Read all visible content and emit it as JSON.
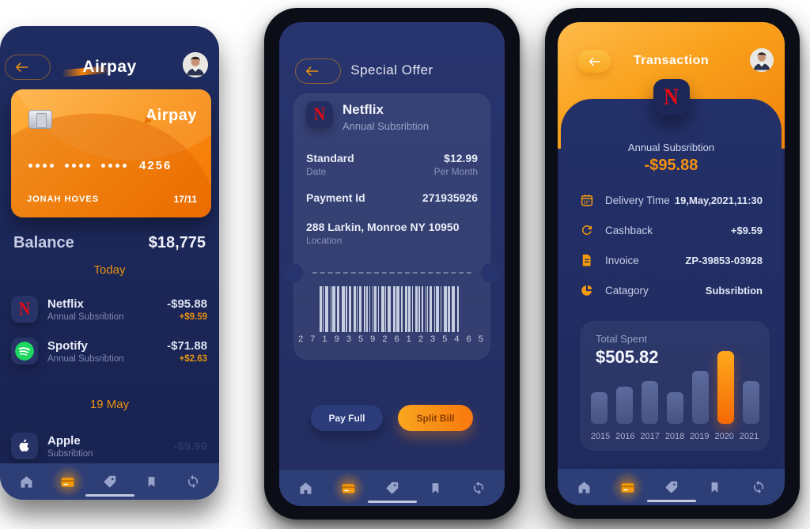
{
  "colors": {
    "accent_orange": "#E8920F",
    "card_gradient": [
      "#FFB242",
      "#F57301"
    ],
    "screen_navy": "#1D2A5C",
    "nav_bar": "#2E3E76",
    "netflix_red": "#E50914",
    "spotify_green": "#1ED760",
    "bar_blue": "#4E5B8C",
    "bar_highlight": "#F98A0D"
  },
  "screen1": {
    "title": "Airpay",
    "card": {
      "brand": "Airpay",
      "digits": "4256",
      "holder": "JONAH HOVES",
      "expiry": "17/11"
    },
    "balance_label": "Balance",
    "balance_value": "$18,775",
    "section1_date": "Today",
    "tx": [
      {
        "name": "Netflix",
        "sub": "Annual Subsribtion",
        "amount": "-$95.88",
        "cashback": "+$9.59"
      },
      {
        "name": "Spotify",
        "sub": "Annual Subsribtion",
        "amount": "-$71.88",
        "cashback": "+$2.63"
      },
      {
        "name": "Apple",
        "sub": "Subsribtion",
        "amount": "-$9.99",
        "cashback": ""
      }
    ],
    "section2_date": "19 May"
  },
  "screen2": {
    "title": "Special Offer",
    "merchant": "Netflix",
    "merchant_sub": "Annual Subsribtion",
    "plan": "Standard",
    "plan_sub": "Date",
    "price": "$12.99",
    "price_sub": "Per Month",
    "payment_id_label": "Payment Id",
    "payment_id": "271935926",
    "address": "288 Larkin, Monroe NY 10950",
    "address_sub": "Location",
    "barcode_text": "2 7 1 9 3 5 9 2 6 1 2 3 5 4 6 5",
    "pay_full": "Pay Full",
    "split_bill": "Split Bill"
  },
  "screen3": {
    "title": "Transaction",
    "sub": "Annual Subsribtion",
    "amount": "-$95.88",
    "details": [
      {
        "icon": "calendar-icon",
        "label": "Delivery Time",
        "value": "19,May,2021,11:30"
      },
      {
        "icon": "cashback-icon",
        "label": "Cashback",
        "value": "+$9.59"
      },
      {
        "icon": "invoice-icon",
        "label": "Invoice",
        "value": "ZP-39853-03928"
      },
      {
        "icon": "category-icon",
        "label": "Catagory",
        "value": "Subsribtion"
      }
    ]
  },
  "chart_data": {
    "type": "bar",
    "title": "Total Spent",
    "total_label": "Total Spent",
    "total_value": "$505.82",
    "categories": [
      "2015",
      "2016",
      "2017",
      "2018",
      "2019",
      "2020",
      "2021"
    ],
    "values": [
      40,
      47,
      54,
      40,
      67,
      92,
      54
    ],
    "unit": "relative bar height (px), no axis shown",
    "highlight_index": 5,
    "xlabel": "",
    "ylabel": "",
    "grid": false,
    "legend": false
  },
  "nav": {
    "items": [
      "home",
      "wallet",
      "tag",
      "bookmark",
      "refresh"
    ],
    "active": "wallet"
  }
}
